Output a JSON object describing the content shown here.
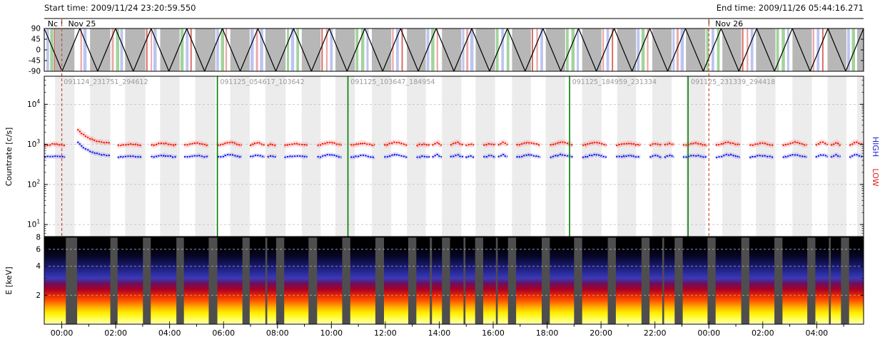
{
  "header": {
    "start_time": "Start time: 2009/11/24 23:20:59.550",
    "end_time": "End time: 2009/11/26 05:44:16.271"
  },
  "chart_data": {
    "type": "heatmap",
    "description": "Three stacked time-series panels: spacecraft scan angle (triangle wave with mode bands), countrate [c/s] for HIGH/LOW channels on log axis, and an energy spectrogram E [keV].",
    "time_span_hours": 30.3879,
    "x_axis": {
      "first_tick_h": 0.6501,
      "step_h": 2.0,
      "tick_labels": [
        "00:00",
        "02:00",
        "04:00",
        "06:00",
        "08:00",
        "10:00",
        "12:00",
        "14:00",
        "16:00",
        "18:00",
        "20:00",
        "22:00",
        "00:00",
        "02:00",
        "04:00"
      ],
      "date_boundaries_h": [
        0.6501,
        24.6501
      ],
      "date_labels": [
        {
          "text": "Nc",
          "t_h": 0.02
        },
        {
          "text": "Nov 25",
          "t_h": 0.78
        },
        {
          "text": "Nov 26",
          "t_h": 24.78
        }
      ]
    },
    "scan_panel": {
      "yticks": [
        90,
        45,
        0,
        -45,
        -90
      ],
      "ylim": [
        -90,
        90
      ],
      "wave": {
        "shape": "triangle",
        "period_h": 1.3212,
        "peak_h": 0.0,
        "max": 90,
        "min": -90
      },
      "band_colors": {
        "k": "#b7b7b7",
        "g": "#a3d39c",
        "b": "#bdc4f0",
        "r": "#eaa9a9",
        "R": "#d9675c"
      },
      "bands": [
        [
          0.08,
          0.1,
          "b"
        ],
        [
          0.22,
          0.12,
          "g"
        ],
        [
          0.36,
          0.04,
          "R"
        ],
        [
          0.4,
          0.72,
          "k"
        ],
        [
          1.34,
          0.06,
          "r"
        ],
        [
          1.45,
          0.12,
          "b"
        ],
        [
          1.7,
          0.75,
          "k"
        ],
        [
          2.5,
          0.08,
          "r"
        ],
        [
          2.66,
          0.12,
          "g"
        ],
        [
          2.82,
          0.1,
          "b"
        ],
        [
          3.0,
          0.75,
          "k"
        ],
        [
          3.78,
          0.05,
          "R"
        ],
        [
          3.95,
          0.05,
          "r"
        ],
        [
          4.05,
          0.12,
          "b"
        ],
        [
          4.3,
          0.72,
          "k"
        ],
        [
          5.05,
          0.12,
          "g"
        ],
        [
          5.25,
          0.1,
          "b"
        ],
        [
          5.42,
          0.05,
          "R"
        ],
        [
          5.6,
          0.75,
          "k"
        ],
        [
          6.38,
          0.1,
          "b"
        ],
        [
          6.55,
          0.12,
          "g"
        ],
        [
          6.72,
          0.06,
          "r"
        ],
        [
          6.9,
          0.72,
          "k"
        ],
        [
          7.65,
          0.12,
          "b"
        ],
        [
          7.85,
          0.08,
          "r"
        ],
        [
          8.0,
          0.12,
          "b"
        ],
        [
          8.2,
          0.75,
          "k"
        ],
        [
          9.0,
          0.08,
          "g"
        ],
        [
          9.15,
          0.12,
          "b"
        ],
        [
          9.35,
          0.1,
          "g"
        ],
        [
          9.55,
          0.7,
          "k"
        ],
        [
          10.28,
          0.05,
          "R"
        ],
        [
          10.45,
          0.06,
          "r"
        ],
        [
          10.6,
          0.1,
          "b"
        ],
        [
          10.8,
          0.72,
          "k"
        ],
        [
          11.55,
          0.1,
          "g"
        ],
        [
          11.75,
          0.12,
          "g"
        ],
        [
          11.95,
          0.08,
          "b"
        ],
        [
          12.15,
          0.72,
          "k"
        ],
        [
          12.9,
          0.06,
          "r"
        ],
        [
          13.05,
          0.1,
          "b"
        ],
        [
          13.25,
          0.05,
          "R"
        ],
        [
          13.45,
          0.7,
          "k"
        ],
        [
          14.18,
          0.1,
          "b"
        ],
        [
          14.35,
          0.12,
          "g"
        ],
        [
          14.55,
          0.06,
          "r"
        ],
        [
          14.75,
          0.72,
          "k"
        ],
        [
          15.5,
          0.08,
          "b"
        ],
        [
          15.65,
          0.08,
          "r"
        ],
        [
          15.8,
          0.12,
          "b"
        ],
        [
          16.0,
          0.72,
          "k"
        ],
        [
          16.75,
          0.1,
          "g"
        ],
        [
          16.95,
          0.1,
          "b"
        ],
        [
          17.15,
          0.1,
          "g"
        ],
        [
          17.35,
          0.7,
          "k"
        ],
        [
          18.08,
          0.05,
          "R"
        ],
        [
          18.25,
          0.06,
          "r"
        ],
        [
          18.4,
          0.1,
          "b"
        ],
        [
          18.6,
          0.72,
          "k"
        ],
        [
          19.35,
          0.1,
          "g"
        ],
        [
          19.55,
          0.12,
          "g"
        ],
        [
          19.75,
          0.08,
          "b"
        ],
        [
          19.95,
          0.72,
          "k"
        ],
        [
          20.7,
          0.06,
          "r"
        ],
        [
          20.85,
          0.1,
          "b"
        ],
        [
          21.05,
          0.05,
          "R"
        ],
        [
          21.25,
          0.7,
          "k"
        ],
        [
          21.98,
          0.1,
          "b"
        ],
        [
          22.15,
          0.12,
          "g"
        ],
        [
          22.35,
          0.06,
          "r"
        ],
        [
          22.55,
          0.72,
          "k"
        ],
        [
          23.3,
          0.08,
          "b"
        ],
        [
          23.45,
          0.08,
          "r"
        ],
        [
          23.6,
          0.12,
          "b"
        ],
        [
          23.8,
          0.72,
          "k"
        ],
        [
          24.55,
          0.1,
          "g"
        ],
        [
          24.75,
          0.1,
          "b"
        ],
        [
          24.95,
          0.1,
          "g"
        ],
        [
          25.15,
          0.7,
          "k"
        ],
        [
          25.88,
          0.05,
          "R"
        ],
        [
          26.05,
          0.06,
          "r"
        ],
        [
          26.2,
          0.1,
          "b"
        ],
        [
          26.4,
          0.72,
          "k"
        ],
        [
          27.15,
          0.1,
          "g"
        ],
        [
          27.35,
          0.12,
          "g"
        ],
        [
          27.55,
          0.08,
          "b"
        ],
        [
          27.75,
          0.72,
          "k"
        ],
        [
          28.5,
          0.06,
          "r"
        ],
        [
          28.65,
          0.1,
          "b"
        ],
        [
          28.85,
          0.05,
          "R"
        ],
        [
          29.05,
          0.7,
          "k"
        ],
        [
          29.78,
          0.1,
          "b"
        ],
        [
          29.95,
          0.12,
          "g"
        ],
        [
          30.15,
          0.24,
          "k"
        ]
      ]
    },
    "countrate_panel": {
      "ylabel": "Countrate [c/s]",
      "ytick_exponents": [
        1,
        2,
        3,
        4
      ],
      "ylim_log10": [
        0.7,
        4.7
      ],
      "right_labels": [
        {
          "text": "HIGH",
          "color": "#2424d6"
        },
        {
          "text": "LOW",
          "color": "#e01818"
        }
      ],
      "series": [
        {
          "name": "HIGH",
          "color": "#1111dd",
          "base_cps": 480
        },
        {
          "name": "LOW",
          "color": "#ee1100",
          "base_cps": 950
        }
      ],
      "decay": {
        "segment_index": 1,
        "low_start_cps": 2400,
        "high_start_cps": 1150,
        "tau_h": 0.35
      },
      "segments_h": [
        [
          0.0,
          0.8
        ],
        [
          1.22,
          2.45
        ],
        [
          2.72,
          3.66
        ],
        [
          3.95,
          4.9
        ],
        [
          5.18,
          6.1
        ],
        [
          6.42,
          7.35
        ],
        [
          7.62,
          8.2
        ],
        [
          8.27,
          8.6
        ],
        [
          8.9,
          9.8
        ],
        [
          10.12,
          11.05
        ],
        [
          11.35,
          12.28
        ],
        [
          12.6,
          13.5
        ],
        [
          13.8,
          14.3
        ],
        [
          14.38,
          14.75
        ],
        [
          15.05,
          15.55
        ],
        [
          15.62,
          15.98
        ],
        [
          16.28,
          16.75
        ],
        [
          16.82,
          17.2
        ],
        [
          17.5,
          18.45
        ],
        [
          18.75,
          19.65
        ],
        [
          19.95,
          20.9
        ],
        [
          21.2,
          22.15
        ],
        [
          22.45,
          22.92
        ],
        [
          22.99,
          23.38
        ],
        [
          23.68,
          24.6
        ],
        [
          24.9,
          25.85
        ],
        [
          26.15,
          27.08
        ],
        [
          27.38,
          28.3
        ],
        [
          28.6,
          29.1
        ],
        [
          29.17,
          29.55
        ],
        [
          29.85,
          30.39
        ]
      ],
      "green_lines_h": [
        6.4215,
        11.2632,
        19.4832,
        23.8776
      ],
      "file_labels": [
        {
          "text": "091124_231751_294612",
          "t_h": 0.72
        },
        {
          "text": "091125_054617_103642",
          "t_h": 6.52
        },
        {
          "text": "091125_103647_184954",
          "t_h": 11.36
        },
        {
          "text": "091125_184959_231334",
          "t_h": 19.58
        },
        {
          "text": "091125_231339_294418",
          "t_h": 23.98
        }
      ],
      "background_band_color": "#ececec",
      "grid_color": "#bbbbbb",
      "date_line_color": "#cc4a33",
      "green_line_color": "#007a00"
    },
    "spectrogram_panel": {
      "ylabel": "E [keV]",
      "yticks": [
        8,
        6,
        4,
        2
      ],
      "ylim": [
        1,
        8
      ],
      "background": "#4e4e4e",
      "grid_color": "#cfcfcf",
      "gradient_stops_frac": [
        [
          0.0,
          "#ffffc0"
        ],
        [
          0.06,
          "#ffff55"
        ],
        [
          0.13,
          "#ffee00"
        ],
        [
          0.2,
          "#ffaa00"
        ],
        [
          0.27,
          "#ff5500"
        ],
        [
          0.33,
          "#e62800"
        ],
        [
          0.4,
          "#aa0028"
        ],
        [
          0.47,
          "#6a1060"
        ],
        [
          0.53,
          "#3a3ab8"
        ],
        [
          0.61,
          "#26268f"
        ],
        [
          0.69,
          "#151560"
        ],
        [
          0.78,
          "#070728"
        ],
        [
          0.88,
          "#000005"
        ],
        [
          1.0,
          "#000000"
        ]
      ]
    }
  }
}
